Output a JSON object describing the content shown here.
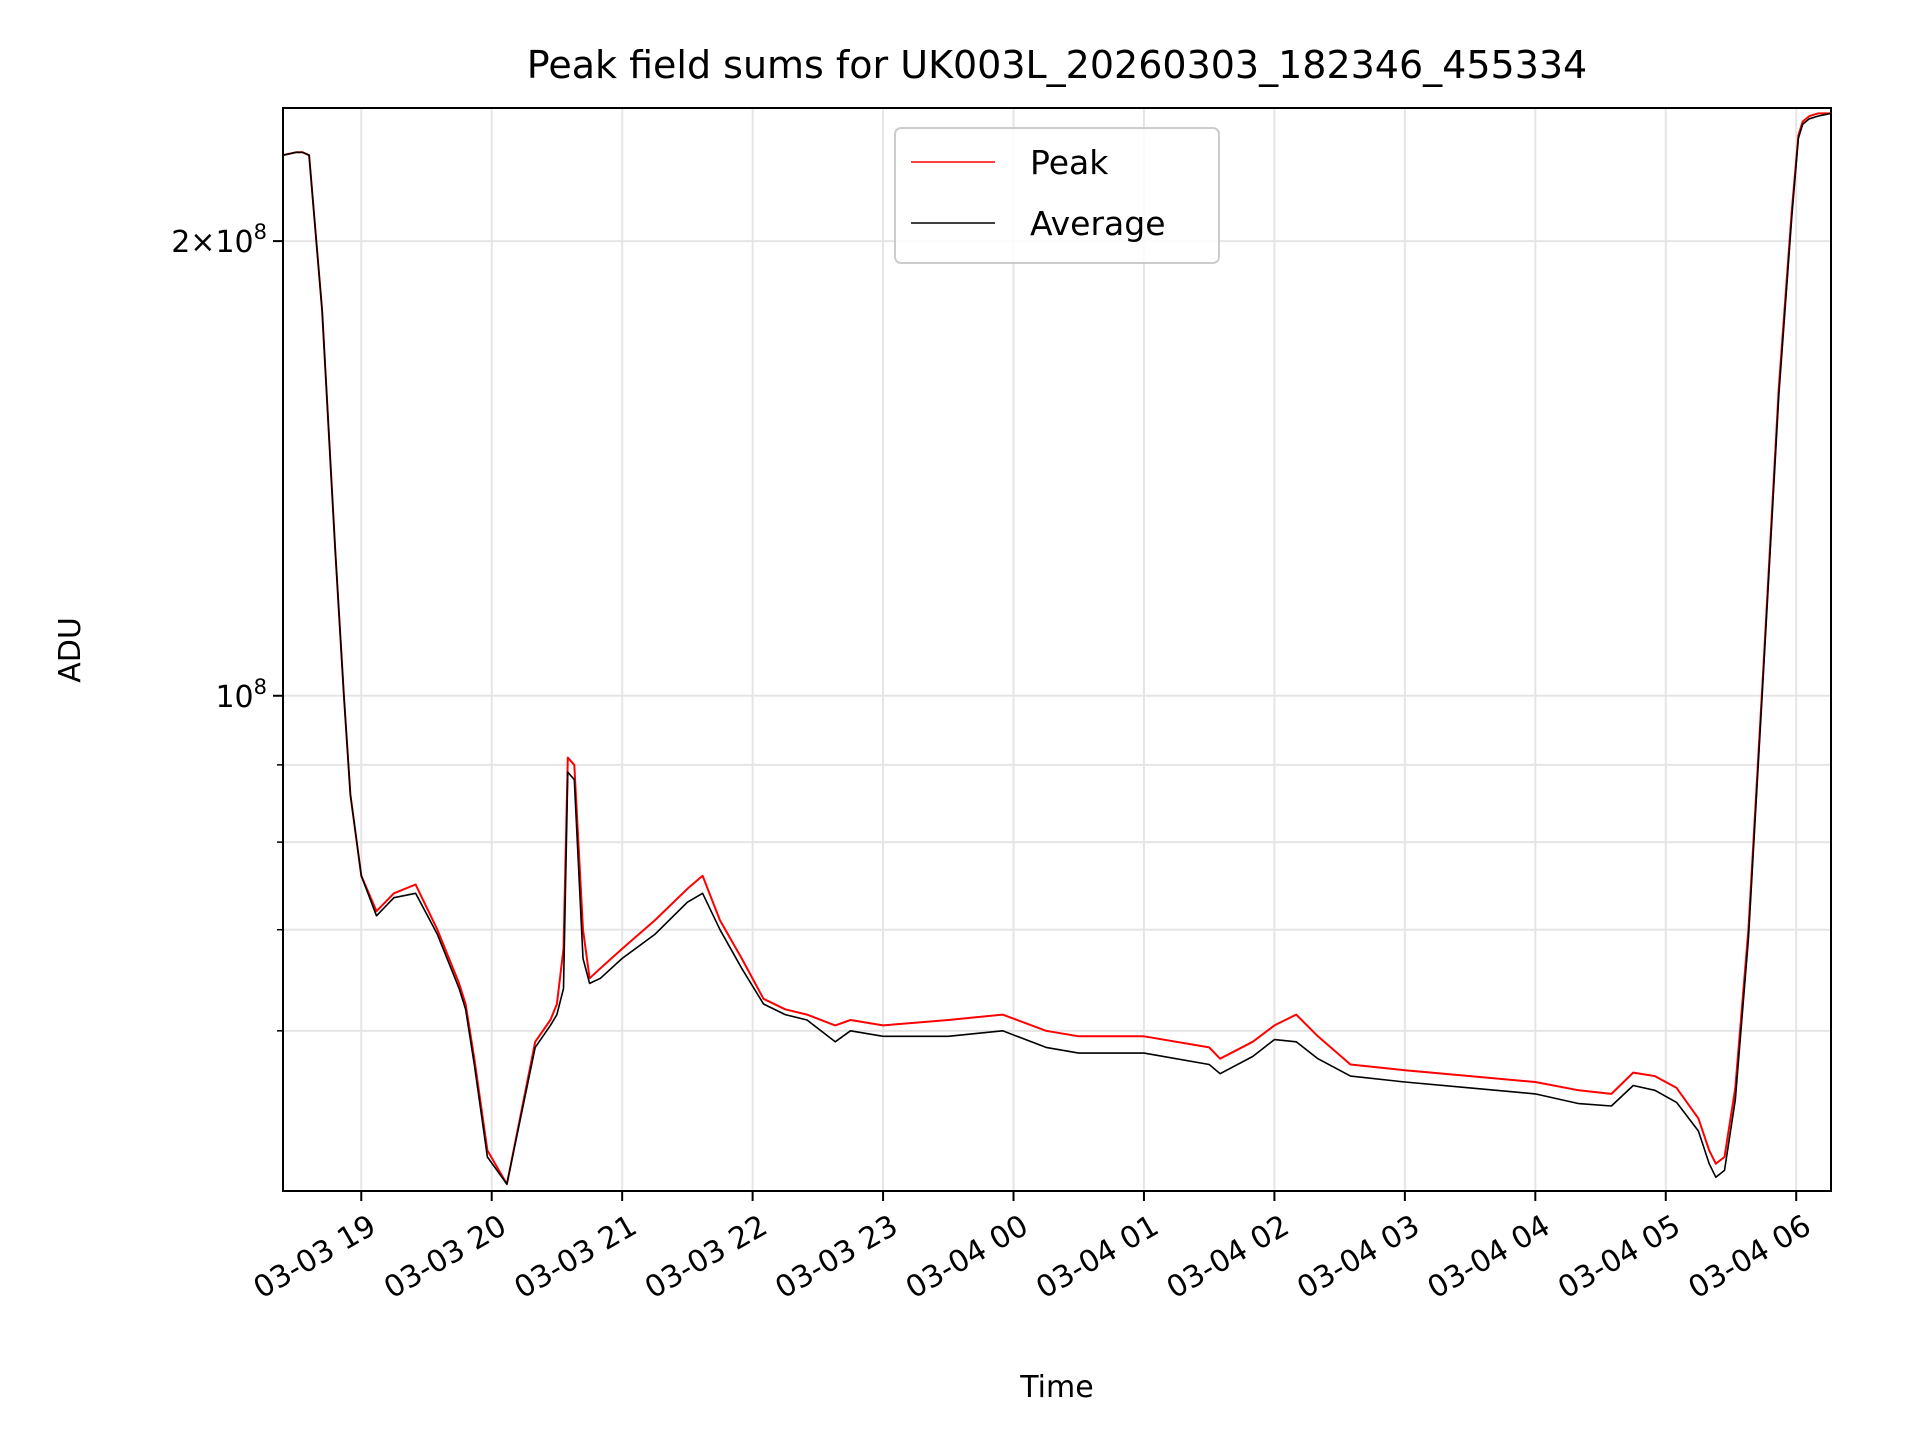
{
  "chart_data": {
    "type": "line",
    "title": "Peak field sums for UK003L_20260303_182346_455334",
    "xlabel": "Time",
    "ylabel": "ADU",
    "yscale": "log",
    "ylim": [
      47000000,
      245000000
    ],
    "xlim": [
      "2026-03-03 18:24",
      "2026-03-04 06:16"
    ],
    "grid": true,
    "legend": {
      "placement": "upper center",
      "entries": [
        "Peak",
        "Average"
      ]
    },
    "x_ticks": [
      {
        "t": "2026-03-03 19:00",
        "label": "03-03 19"
      },
      {
        "t": "2026-03-03 20:00",
        "label": "03-03 20"
      },
      {
        "t": "2026-03-03 21:00",
        "label": "03-03 21"
      },
      {
        "t": "2026-03-03 22:00",
        "label": "03-03 22"
      },
      {
        "t": "2026-03-03 23:00",
        "label": "03-03 23"
      },
      {
        "t": "2026-03-04 00:00",
        "label": "03-04 00"
      },
      {
        "t": "2026-03-04 01:00",
        "label": "03-04 01"
      },
      {
        "t": "2026-03-04 02:00",
        "label": "03-04 02"
      },
      {
        "t": "2026-03-04 03:00",
        "label": "03-04 03"
      },
      {
        "t": "2026-03-04 04:00",
        "label": "03-04 04"
      },
      {
        "t": "2026-03-04 05:00",
        "label": "03-04 05"
      },
      {
        "t": "2026-03-04 06:00",
        "label": "03-04 06"
      }
    ],
    "y_major_ticks": [
      {
        "value": 100000000,
        "base": "10",
        "exp": "8",
        "coef": ""
      },
      {
        "value": 200000000,
        "base": "10",
        "exp": "8",
        "coef": "2"
      }
    ],
    "y_minor_ticks": [
      60000000,
      70000000,
      80000000,
      90000000
    ],
    "series": [
      {
        "name": "Peak",
        "color": "#ff0000",
        "x": [
          "2026-03-03 18:24",
          "2026-03-03 18:30",
          "2026-03-03 18:33",
          "2026-03-03 18:36",
          "2026-03-03 18:42",
          "2026-03-03 18:48",
          "2026-03-03 18:52",
          "2026-03-03 18:55",
          "2026-03-03 19:00",
          "2026-03-03 19:07",
          "2026-03-03 19:15",
          "2026-03-03 19:25",
          "2026-03-03 19:35",
          "2026-03-03 19:45",
          "2026-03-03 19:48",
          "2026-03-03 19:52",
          "2026-03-03 19:58",
          "2026-03-03 20:07",
          "2026-03-03 20:20",
          "2026-03-03 20:27",
          "2026-03-03 20:30",
          "2026-03-03 20:33",
          "2026-03-03 20:35",
          "2026-03-03 20:38",
          "2026-03-03 20:42",
          "2026-03-03 20:45",
          "2026-03-03 20:50",
          "2026-03-03 21:00",
          "2026-03-03 21:15",
          "2026-03-03 21:30",
          "2026-03-03 21:37",
          "2026-03-03 21:45",
          "2026-03-03 21:55",
          "2026-03-03 22:05",
          "2026-03-03 22:15",
          "2026-03-03 22:25",
          "2026-03-03 22:38",
          "2026-03-03 22:45",
          "2026-03-03 23:00",
          "2026-03-03 23:30",
          "2026-03-03 23:55",
          "2026-03-04 00:15",
          "2026-03-04 00:30",
          "2026-03-04 01:00",
          "2026-03-04 01:30",
          "2026-03-04 01:35",
          "2026-03-04 01:50",
          "2026-03-04 02:00",
          "2026-03-04 02:10",
          "2026-03-04 02:20",
          "2026-03-04 02:35",
          "2026-03-04 03:00",
          "2026-03-04 03:30",
          "2026-03-04 04:00",
          "2026-03-04 04:20",
          "2026-03-04 04:35",
          "2026-03-04 04:45",
          "2026-03-04 04:55",
          "2026-03-04 05:05",
          "2026-03-04 05:15",
          "2026-03-04 05:20",
          "2026-03-04 05:23",
          "2026-03-04 05:27",
          "2026-03-04 05:32",
          "2026-03-04 05:38",
          "2026-03-04 05:45",
          "2026-03-04 05:52",
          "2026-03-04 05:58",
          "2026-03-04 06:01",
          "2026-03-04 06:03",
          "2026-03-04 06:06",
          "2026-03-04 06:10",
          "2026-03-04 06:16"
        ],
        "y": [
          228000000,
          229000000,
          229000000,
          228000000,
          180000000,
          125000000,
          100000000,
          86000000,
          76000000,
          72000000,
          74000000,
          75000000,
          70000000,
          64500000,
          62500000,
          57500000,
          50000000,
          47500000,
          59000000,
          61000000,
          62500000,
          68000000,
          91000000,
          90000000,
          70000000,
          65000000,
          66000000,
          68000000,
          71000000,
          74500000,
          76000000,
          71000000,
          67000000,
          63000000,
          62000000,
          61500000,
          60500000,
          61000000,
          60500000,
          61000000,
          61500000,
          60000000,
          59500000,
          59500000,
          58500000,
          57500000,
          59000000,
          60500000,
          61500000,
          59500000,
          57000000,
          56500000,
          56000000,
          55500000,
          54800000,
          54500000,
          56300000,
          56000000,
          55000000,
          52500000,
          50000000,
          49000000,
          49500000,
          55000000,
          70000000,
          105000000,
          160000000,
          210000000,
          235000000,
          240000000,
          242000000,
          243000000,
          243000000
        ]
      },
      {
        "name": "Average",
        "color": "#000000",
        "x": [
          "2026-03-03 18:24",
          "2026-03-03 18:30",
          "2026-03-03 18:33",
          "2026-03-03 18:36",
          "2026-03-03 18:42",
          "2026-03-03 18:48",
          "2026-03-03 18:52",
          "2026-03-03 18:55",
          "2026-03-03 19:00",
          "2026-03-03 19:07",
          "2026-03-03 19:15",
          "2026-03-03 19:25",
          "2026-03-03 19:35",
          "2026-03-03 19:45",
          "2026-03-03 19:48",
          "2026-03-03 19:52",
          "2026-03-03 19:58",
          "2026-03-03 20:07",
          "2026-03-03 20:20",
          "2026-03-03 20:27",
          "2026-03-03 20:30",
          "2026-03-03 20:33",
          "2026-03-03 20:35",
          "2026-03-03 20:38",
          "2026-03-03 20:42",
          "2026-03-03 20:45",
          "2026-03-03 20:50",
          "2026-03-03 21:00",
          "2026-03-03 21:15",
          "2026-03-03 21:30",
          "2026-03-03 21:37",
          "2026-03-03 21:45",
          "2026-03-03 21:55",
          "2026-03-03 22:05",
          "2026-03-03 22:15",
          "2026-03-03 22:25",
          "2026-03-03 22:38",
          "2026-03-03 22:45",
          "2026-03-03 23:00",
          "2026-03-03 23:30",
          "2026-03-03 23:55",
          "2026-03-04 00:15",
          "2026-03-04 00:30",
          "2026-03-04 01:00",
          "2026-03-04 01:30",
          "2026-03-04 01:35",
          "2026-03-04 01:50",
          "2026-03-04 02:00",
          "2026-03-04 02:10",
          "2026-03-04 02:20",
          "2026-03-04 02:35",
          "2026-03-04 03:00",
          "2026-03-04 03:30",
          "2026-03-04 04:00",
          "2026-03-04 04:20",
          "2026-03-04 04:35",
          "2026-03-04 04:45",
          "2026-03-04 04:55",
          "2026-03-04 05:05",
          "2026-03-04 05:15",
          "2026-03-04 05:20",
          "2026-03-04 05:23",
          "2026-03-04 05:27",
          "2026-03-04 05:32",
          "2026-03-04 05:38",
          "2026-03-04 05:45",
          "2026-03-04 05:52",
          "2026-03-04 05:58",
          "2026-03-04 06:01",
          "2026-03-04 06:03",
          "2026-03-04 06:06",
          "2026-03-04 06:10",
          "2026-03-04 06:16"
        ],
        "y": [
          228000000,
          229000000,
          229000000,
          228000000,
          180000000,
          125000000,
          100000000,
          86000000,
          76000000,
          71500000,
          73500000,
          74000000,
          69500000,
          64000000,
          62000000,
          57000000,
          49500000,
          47500000,
          58500000,
          60500000,
          61500000,
          64000000,
          89000000,
          88000000,
          67000000,
          64500000,
          65000000,
          67000000,
          69500000,
          73000000,
          74000000,
          70000000,
          66000000,
          62500000,
          61500000,
          61000000,
          59000000,
          60000000,
          59500000,
          59500000,
          60000000,
          58500000,
          58000000,
          58000000,
          57000000,
          56200000,
          57700000,
          59200000,
          59000000,
          57500000,
          56000000,
          55500000,
          55000000,
          54500000,
          53700000,
          53500000,
          55200000,
          54800000,
          53800000,
          51500000,
          49000000,
          48000000,
          48500000,
          54000000,
          69000000,
          104000000,
          158000000,
          208000000,
          234000000,
          239000000,
          241000000,
          242000000,
          243000000
        ]
      }
    ]
  }
}
